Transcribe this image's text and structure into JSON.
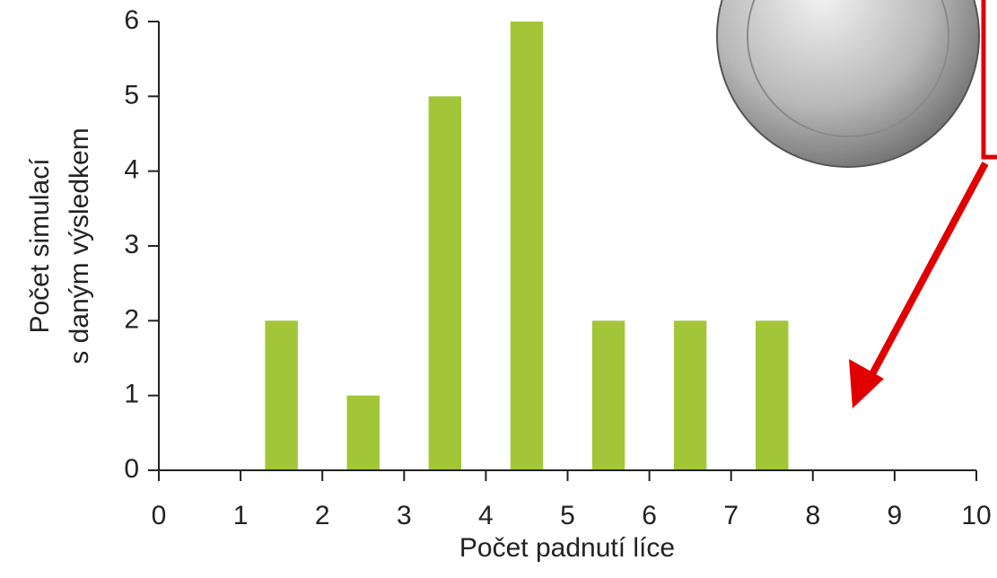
{
  "chart_data": {
    "type": "bar",
    "x": [
      1.5,
      2.5,
      3.5,
      4.5,
      5.5,
      6.5,
      7.5
    ],
    "values": [
      2,
      1,
      5,
      6,
      2,
      2,
      2
    ],
    "color": "#a3c639",
    "xlim": [
      0,
      10
    ],
    "xticks": [
      0,
      1,
      2,
      3,
      4,
      5,
      6,
      7,
      8,
      9,
      10
    ],
    "ylim": [
      0,
      6
    ],
    "yticks": [
      0,
      1,
      2,
      3,
      4,
      5,
      6
    ],
    "xlabel": "Počet padnutí líce",
    "ylabel": [
      "Počet simulací",
      "s daným výsledkem"
    ]
  }
}
